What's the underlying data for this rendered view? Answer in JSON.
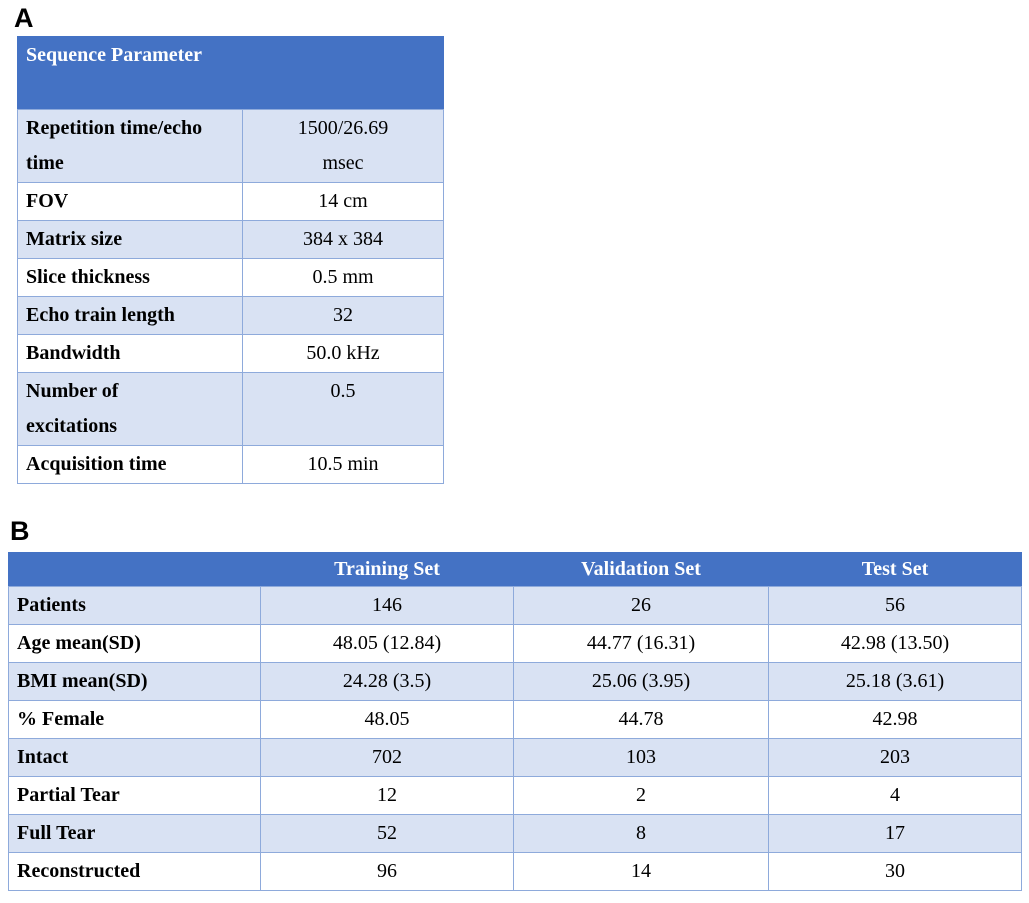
{
  "colors": {
    "header_bg": "#4472C4",
    "band_row_bg": "#D9E2F3",
    "border": "#8EAADB",
    "header_text": "#FFFFFF",
    "body_text": "#000000"
  },
  "panel_a": {
    "label": "A",
    "table": {
      "header": "Sequence Parameter",
      "rows": [
        {
          "param": "Repetition time/echo time",
          "value": "1500/26.69 msec"
        },
        {
          "param": "FOV",
          "value": "14 cm"
        },
        {
          "param": "Matrix size",
          "value": "384 x 384"
        },
        {
          "param": "Slice thickness",
          "value": "0.5 mm"
        },
        {
          "param": "Echo train length",
          "value": "32"
        },
        {
          "param": "Bandwidth",
          "value": "50.0 kHz"
        },
        {
          "param": "Number of excitations",
          "value": "0.5"
        },
        {
          "param": "Acquisition time",
          "value": "10.5 min"
        }
      ]
    }
  },
  "panel_b": {
    "label": "B",
    "table": {
      "columns": [
        "Training Set",
        "Validation Set",
        "Test Set"
      ],
      "rows": [
        {
          "label": "Patients",
          "values": [
            "146",
            "26",
            "56"
          ]
        },
        {
          "label": "Age mean(SD)",
          "values": [
            "48.05 (12.84)",
            "44.77 (16.31)",
            "42.98 (13.50)"
          ]
        },
        {
          "label": "BMI mean(SD)",
          "values": [
            "24.28 (3.5)",
            "25.06 (3.95)",
            "25.18 (3.61)"
          ]
        },
        {
          "label": "% Female",
          "values": [
            "48.05",
            "44.78",
            "42.98"
          ]
        },
        {
          "label": "Intact",
          "values": [
            "702",
            "103",
            "203"
          ]
        },
        {
          "label": "Partial Tear",
          "values": [
            "12",
            "2",
            "4"
          ]
        },
        {
          "label": "Full Tear",
          "values": [
            "52",
            "8",
            "17"
          ]
        },
        {
          "label": "Reconstructed",
          "values": [
            "96",
            "14",
            "30"
          ]
        }
      ]
    }
  },
  "chart_data": {
    "type": "table",
    "tables": [
      {
        "title": "Sequence Parameter",
        "rows": {
          "Repetition time/echo time": "1500/26.69 msec",
          "FOV": "14 cm",
          "Matrix size": "384 x 384",
          "Slice thickness": "0.5 mm",
          "Echo train length": "32",
          "Bandwidth": "50.0 kHz",
          "Number of excitations": "0.5",
          "Acquisition time": "10.5 min"
        }
      },
      {
        "columns": [
          "Training Set",
          "Validation Set",
          "Test Set"
        ],
        "rows": {
          "Patients": [
            146,
            26,
            56
          ],
          "Age mean(SD)": [
            "48.05 (12.84)",
            "44.77 (16.31)",
            "42.98 (13.50)"
          ],
          "BMI mean(SD)": [
            "24.28 (3.5)",
            "25.06 (3.95)",
            "25.18 (3.61)"
          ],
          "% Female": [
            48.05,
            44.78,
            42.98
          ],
          "Intact": [
            702,
            103,
            203
          ],
          "Partial Tear": [
            12,
            2,
            4
          ],
          "Full Tear": [
            52,
            8,
            17
          ],
          "Reconstructed": [
            96,
            14,
            30
          ]
        }
      }
    ]
  }
}
